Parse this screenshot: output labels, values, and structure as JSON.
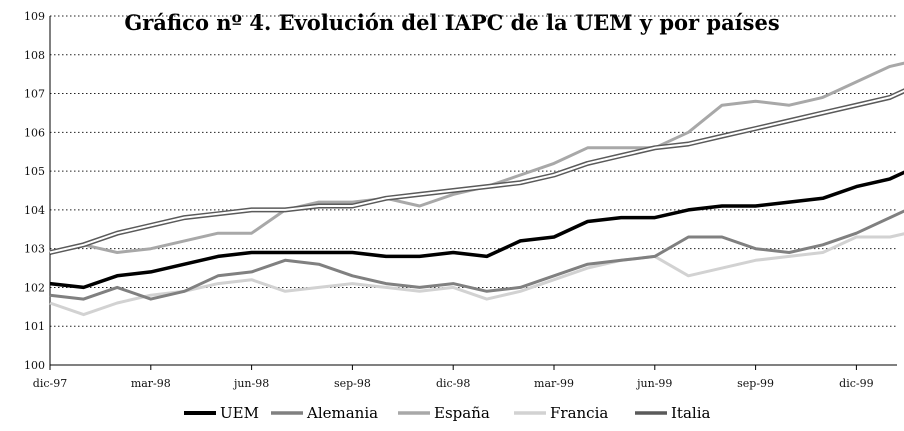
{
  "chart_data": {
    "type": "line",
    "title": "Gráfico nº 4. Evolución del IAPC de la UEM y por países",
    "xlabel": "",
    "ylabel": "",
    "ylim": [
      100,
      109
    ],
    "yticks": [
      100,
      101,
      102,
      103,
      104,
      105,
      106,
      107,
      108,
      109
    ],
    "x_tick_labels": [
      "dic-97",
      "mar-98",
      "jun-98",
      "sep-98",
      "dic-98",
      "mar-99",
      "jun-99",
      "sep-99",
      "dic-99"
    ],
    "x_tick_months": [
      0,
      3,
      6,
      9,
      12,
      15,
      18,
      21,
      24
    ],
    "grid": "horizontal dotted",
    "legend": "bottom",
    "series": [
      {
        "name": "UEM",
        "color": "#000000",
        "values": [
          102.1,
          102.0,
          102.3,
          102.4,
          102.6,
          102.8,
          102.9,
          102.9,
          102.9,
          102.9,
          102.8,
          102.8,
          102.9,
          102.8,
          103.2,
          103.3,
          103.7,
          103.8,
          103.8,
          104.0,
          104.1,
          104.1,
          104.2,
          104.3,
          104.6,
          104.8,
          105.2
        ]
      },
      {
        "name": "Alemania",
        "color": "#808080",
        "values": [
          101.8,
          101.7,
          102.0,
          101.7,
          101.9,
          102.3,
          102.4,
          102.7,
          102.6,
          102.3,
          102.1,
          102.0,
          102.1,
          101.9,
          102.0,
          102.3,
          102.6,
          102.7,
          102.8,
          103.3,
          103.3,
          103.0,
          102.9,
          103.1,
          103.4,
          103.8,
          104.2
        ]
      },
      {
        "name": "España",
        "color": "#a8a8a8",
        "values": [
          102.9,
          103.1,
          102.9,
          103.0,
          103.2,
          103.4,
          103.4,
          104.0,
          104.2,
          104.2,
          104.3,
          104.1,
          104.4,
          104.6,
          104.9,
          105.2,
          105.6,
          105.6,
          105.6,
          106.0,
          106.7,
          106.8,
          106.7,
          106.9,
          107.3,
          107.7,
          107.9
        ]
      },
      {
        "name": "Francia",
        "color": "#d2d2d2",
        "values": [
          101.6,
          101.3,
          101.6,
          101.8,
          101.9,
          102.1,
          102.2,
          101.9,
          102.0,
          102.1,
          102.0,
          101.9,
          102.0,
          101.7,
          101.9,
          102.2,
          102.5,
          102.7,
          102.8,
          102.3,
          102.5,
          102.7,
          102.8,
          102.9,
          103.3,
          103.3,
          103.5
        ]
      },
      {
        "name": "Italia",
        "color": "#5a5a5a",
        "style": "double",
        "values": [
          102.9,
          103.1,
          103.4,
          103.6,
          103.8,
          103.9,
          104.0,
          104.0,
          104.1,
          104.1,
          104.3,
          104.4,
          104.5,
          104.6,
          104.7,
          104.9,
          105.2,
          105.4,
          105.6,
          105.7,
          105.9,
          106.1,
          106.3,
          106.5,
          106.7,
          106.9,
          107.3
        ]
      }
    ]
  }
}
